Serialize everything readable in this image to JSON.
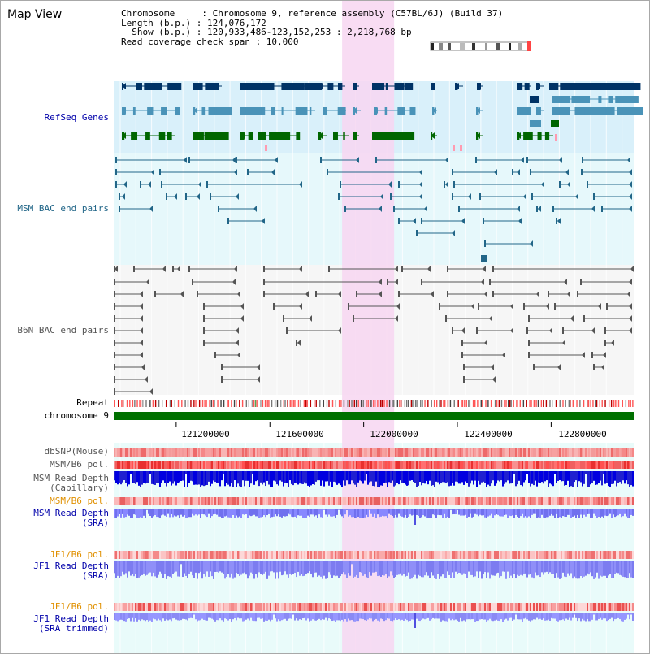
{
  "header": {
    "title": "Map View",
    "chromosome_row": "Chromosome     : Chromosome 9, reference assembly (C57BL/6J) (Build 37)",
    "length_row": "Length (b.p.) : 124,076,172",
    "show_row": "  Show (b.p.) : 120,933,486-123,152,253 : 2,218,768 bp",
    "coverage_row": "Read coverage check span : 10,000"
  },
  "tracks": {
    "refseq": "RefSeq Genes",
    "msm_bac": "MSM BAC end pairs",
    "b6n_bac": "B6N BAC end pairs",
    "repeat": "Repeat",
    "chromosome": "chromosome 9",
    "dbsnp": "dbSNP(Mouse)",
    "msm_pol": "MSM/B6 pol.",
    "msm_depth_cap": "MSM Read Depth\n(Capillary)",
    "msm_pol_sra": "MSM/B6 pol.",
    "msm_depth_sra": "MSM Read Depth\n(SRA)",
    "jf1_pol": "JF1/B6 pol.",
    "jf1_depth_sra": "JF1 Read Depth\n(SRA)",
    "jf1_pol2": "JF1/B6 pol.",
    "jf1_depth_trim": "JF1 Read Depth\n(SRA trimmed)"
  },
  "axis": {
    "ticks": [
      "121200000",
      "121600000",
      "122000000",
      "122400000",
      "122800000"
    ],
    "tick_values": [
      121200000,
      121600000,
      122000000,
      122400000,
      122800000
    ],
    "range": [
      120933486,
      123152253
    ]
  },
  "highlight": {
    "start": 121908000,
    "end": 122130000
  },
  "colors": {
    "refseq_dark": "#003366",
    "refseq_mid": "#4a93b8",
    "refseq_green": "#006600",
    "msm_bac": "#226688",
    "b6n_bac": "#555555",
    "chromosome_bar": "#007000",
    "highlight": "#f7d6f1",
    "label_blue": "#0000aa",
    "label_teal": "#226688",
    "label_orange": "#e09000"
  }
}
